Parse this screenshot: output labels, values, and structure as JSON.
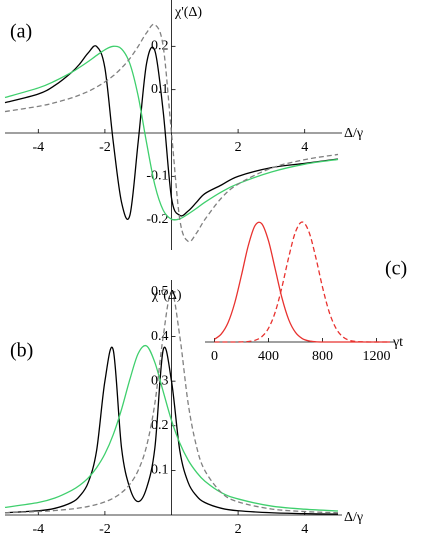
{
  "chart_data": [
    {
      "type": "line",
      "label": "(a)",
      "ylabel": "χ'(Δ)",
      "xlabel": "Δ/γ",
      "x": [
        -5,
        -4,
        -3.5,
        -3,
        -2.75,
        -2.5,
        -2.25,
        -2,
        -1.75,
        -1.5,
        -1.25,
        -1,
        -0.75,
        -0.5,
        -0.25,
        0,
        0.25,
        0.5,
        0.75,
        1,
        1.5,
        2,
        3,
        4,
        5
      ],
      "xlim": [
        -5,
        5
      ],
      "ylim": [
        -0.27,
        0.3
      ],
      "xticks": [
        -4,
        -2,
        2,
        4
      ],
      "yticks": [
        -0.2,
        -0.1,
        0.1,
        0.2
      ],
      "series": [
        {
          "color": "#000000",
          "dashed": false,
          "values": [
            0.07,
            0.09,
            0.11,
            0.14,
            0.16,
            0.185,
            0.2,
            0.15,
            -0.02,
            -0.16,
            -0.19,
            -0.02,
            0.16,
            0.19,
            0.05,
            -0.15,
            -0.19,
            -0.18,
            -0.16,
            -0.14,
            -0.12,
            -0.1,
            -0.08,
            -0.07,
            -0.06
          ]
        },
        {
          "color": "#3fcf6d",
          "dashed": false,
          "values": [
            0.082,
            0.104,
            0.12,
            0.14,
            0.152,
            0.165,
            0.179,
            0.192,
            0.2,
            0.194,
            0.16,
            0.085,
            -0.022,
            -0.12,
            -0.178,
            -0.199,
            -0.198,
            -0.187,
            -0.174,
            -0.16,
            -0.136,
            -0.117,
            -0.09,
            -0.072,
            -0.061
          ]
        },
        {
          "color": "#808080",
          "dashed": true,
          "values": [
            0.0495,
            0.0615,
            0.07,
            0.081,
            0.088,
            0.096,
            0.106,
            0.118,
            0.132,
            0.15,
            0.172,
            0.2,
            0.231,
            0.25,
            0.2,
            0,
            -0.2,
            -0.25,
            -0.231,
            -0.2,
            -0.15,
            -0.118,
            -0.081,
            -0.0615,
            -0.0495
          ]
        }
      ]
    },
    {
      "type": "line",
      "label": "(b)",
      "ylabel": "χ''(Δ)",
      "xlabel": "Δ/γ",
      "x": [
        -5,
        -4,
        -3.5,
        -3,
        -2.75,
        -2.5,
        -2.25,
        -2,
        -1.75,
        -1.5,
        -1.25,
        -1,
        -0.75,
        -0.5,
        -0.25,
        0,
        0.25,
        0.5,
        0.75,
        1,
        1.5,
        2,
        3,
        4,
        5
      ],
      "xlim": [
        -5,
        5
      ],
      "ylim": [
        0,
        0.52
      ],
      "xticks": [
        -4,
        -2,
        2,
        4
      ],
      "yticks": [
        0.1,
        0.2,
        0.3,
        0.4,
        0.5
      ],
      "series": [
        {
          "color": "#000000",
          "dashed": false,
          "values": [
            0.005,
            0.0095,
            0.015,
            0.028,
            0.043,
            0.073,
            0.144,
            0.3,
            0.37,
            0.15,
            0.06,
            0.03,
            0.06,
            0.15,
            0.37,
            0.3,
            0.144,
            0.073,
            0.043,
            0.028,
            0.015,
            0.0095,
            0.005,
            0.003,
            0.002
          ]
        },
        {
          "color": "#3fcf6d",
          "dashed": false,
          "values": [
            0.017,
            0.028,
            0.038,
            0.055,
            0.067,
            0.083,
            0.106,
            0.137,
            0.18,
            0.237,
            0.304,
            0.362,
            0.379,
            0.342,
            0.277,
            0.212,
            0.161,
            0.123,
            0.096,
            0.076,
            0.05,
            0.036,
            0.02,
            0.013,
            0.009
          ]
        },
        {
          "color": "#808080",
          "dashed": true,
          "values": [
            0.005,
            0.0077,
            0.01,
            0.0135,
            0.016,
            0.0192,
            0.0235,
            0.0294,
            0.0377,
            0.05,
            0.069,
            0.1,
            0.154,
            0.25,
            0.4,
            0.5,
            0.4,
            0.25,
            0.154,
            0.1,
            0.05,
            0.0294,
            0.0135,
            0.0077,
            0.005
          ]
        }
      ]
    },
    {
      "type": "line",
      "label": "(c)",
      "xlabel": "γt",
      "x": [
        0,
        50,
        100,
        150,
        200,
        250,
        300,
        350,
        400,
        450,
        500,
        550,
        600,
        650,
        700,
        750,
        800,
        850,
        900,
        950,
        1000,
        1050,
        1100,
        1150,
        1200,
        1250,
        1300
      ],
      "xlim": [
        -70,
        1300
      ],
      "ylim": [
        0,
        1
      ],
      "xticks": [
        0,
        400,
        800,
        1200
      ],
      "series": [
        {
          "color": "#e8322f",
          "dashed": false,
          "values": [
            0.023,
            0.066,
            0.159,
            0.325,
            0.556,
            0.801,
            0.969,
            0.986,
            0.844,
            0.607,
            0.367,
            0.186,
            0.08,
            0.029,
            0.009,
            0.002,
            0,
            0,
            0,
            0,
            0,
            0,
            0,
            0,
            0,
            0,
            0
          ]
        },
        {
          "color": "#e8322f",
          "dashed": true,
          "values": [
            0,
            0,
            0,
            0,
            0.001,
            0.004,
            0.014,
            0.044,
            0.114,
            0.249,
            0.458,
            0.707,
            0.917,
            1,
            0.917,
            0.707,
            0.458,
            0.249,
            0.114,
            0.044,
            0.014,
            0.004,
            0.001,
            0,
            0,
            0,
            0
          ]
        }
      ]
    }
  ]
}
